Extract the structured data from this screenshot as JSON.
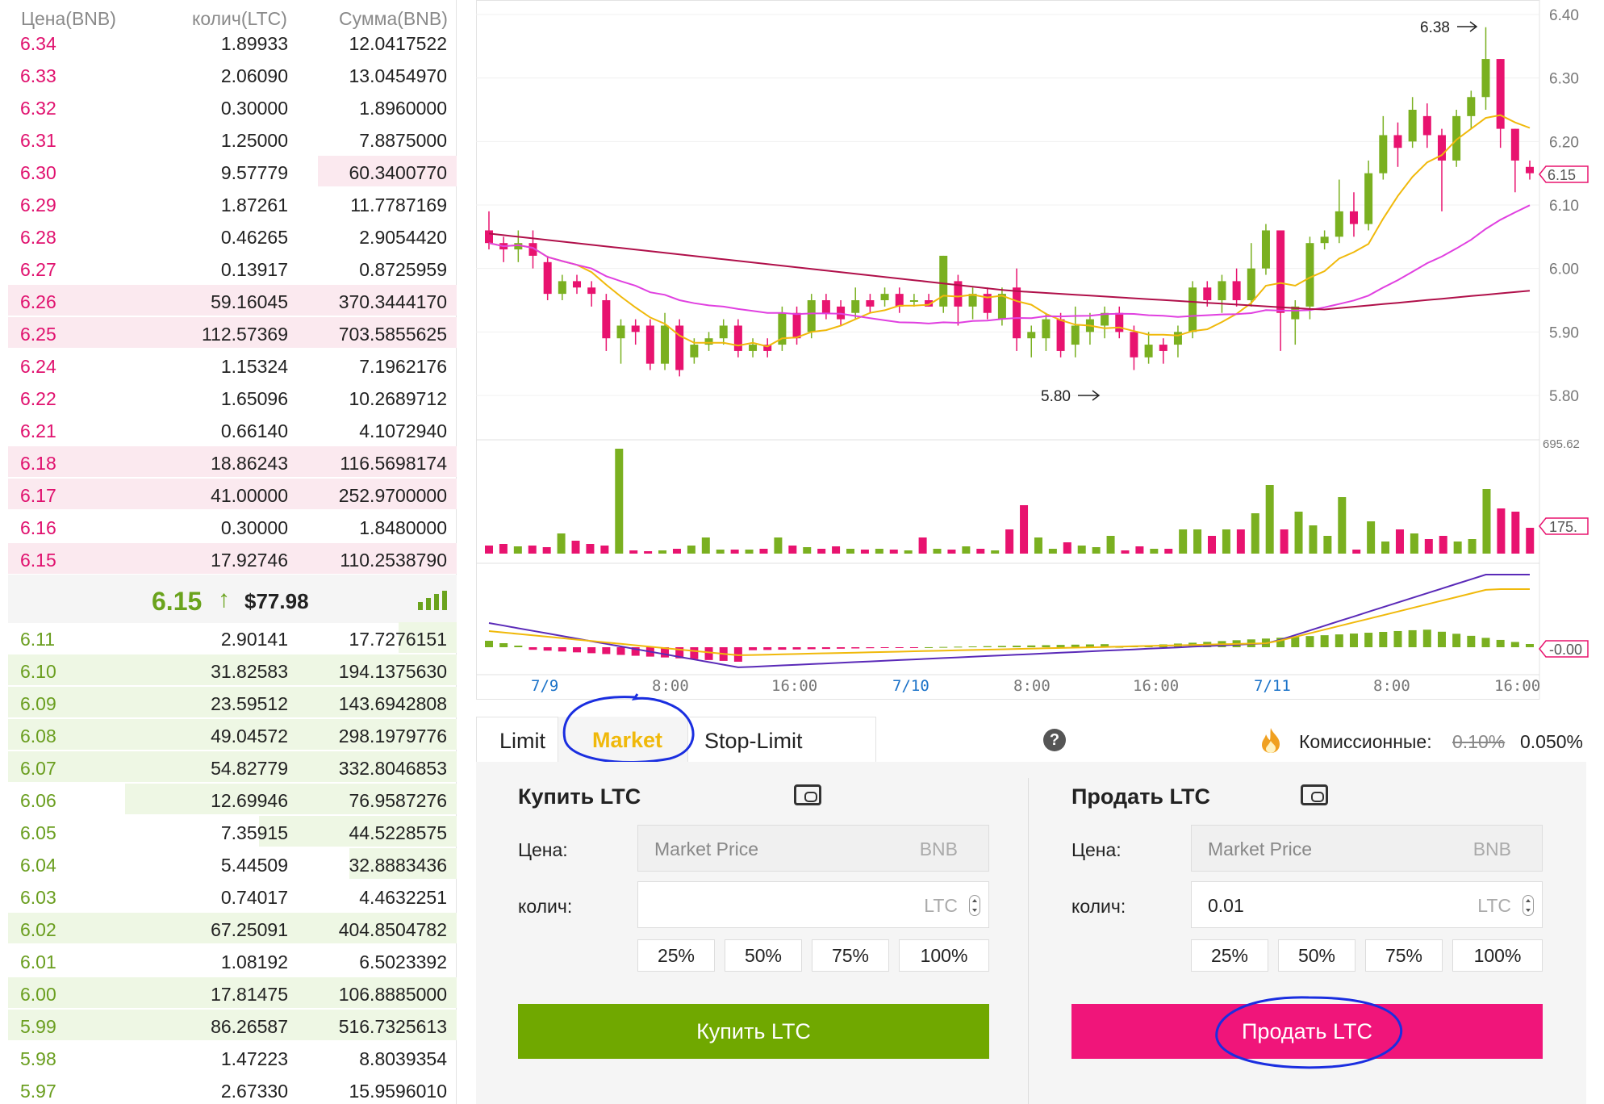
{
  "orderbook": {
    "headers": {
      "price": "Цена(BNB)",
      "qty": "колич(LTC)",
      "sum": "Сумма(BNB)"
    },
    "asks": [
      {
        "price": "6.34",
        "qty": "1.89933",
        "sum": "12.0417522",
        "depth": 0.02
      },
      {
        "price": "6.33",
        "qty": "2.06090",
        "sum": "13.0454970",
        "depth": 0.02
      },
      {
        "price": "6.32",
        "qty": "0.30000",
        "sum": "1.8960000",
        "depth": 0.02
      },
      {
        "price": "6.31",
        "qty": "1.25000",
        "sum": "7.8875000",
        "depth": 0.02
      },
      {
        "price": "6.30",
        "qty": "9.57779",
        "sum": "60.3400770",
        "depth": 0.31
      },
      {
        "price": "6.29",
        "qty": "1.87261",
        "sum": "11.7787169",
        "depth": 0.02
      },
      {
        "price": "6.28",
        "qty": "0.46265",
        "sum": "2.9054420",
        "depth": 0.02
      },
      {
        "price": "6.27",
        "qty": "0.13917",
        "sum": "0.8725959",
        "depth": 0.02
      },
      {
        "price": "6.26",
        "qty": "59.16045",
        "sum": "370.3444170",
        "depth": 1.0
      },
      {
        "price": "6.25",
        "qty": "112.57369",
        "sum": "703.5855625",
        "depth": 1.0
      },
      {
        "price": "6.24",
        "qty": "1.15324",
        "sum": "7.1962176",
        "depth": 0.02
      },
      {
        "price": "6.22",
        "qty": "1.65096",
        "sum": "10.2689712",
        "depth": 0.02
      },
      {
        "price": "6.21",
        "qty": "0.66140",
        "sum": "4.1072940",
        "depth": 0.02
      },
      {
        "price": "6.18",
        "qty": "18.86243",
        "sum": "116.5698174",
        "depth": 1.0
      },
      {
        "price": "6.17",
        "qty": "41.00000",
        "sum": "252.9700000",
        "depth": 1.0
      },
      {
        "price": "6.16",
        "qty": "0.30000",
        "sum": "1.8480000",
        "depth": 0.02
      },
      {
        "price": "6.15",
        "qty": "17.92746",
        "sum": "110.2538790",
        "depth": 1.0
      }
    ],
    "last_price": "6.15",
    "last_arrow": "↑",
    "last_usd": "$77.98",
    "bids": [
      {
        "price": "6.11",
        "qty": "2.90141",
        "sum": "17.7276151",
        "depth": 0.13
      },
      {
        "price": "6.10",
        "qty": "31.82583",
        "sum": "194.1375630",
        "depth": 1.0
      },
      {
        "price": "6.09",
        "qty": "23.59512",
        "sum": "143.6942808",
        "depth": 1.0
      },
      {
        "price": "6.08",
        "qty": "49.04572",
        "sum": "298.1979776",
        "depth": 1.0
      },
      {
        "price": "6.07",
        "qty": "54.82779",
        "sum": "332.8046853",
        "depth": 1.0
      },
      {
        "price": "6.06",
        "qty": "12.69946",
        "sum": "76.9587276",
        "depth": 0.74
      },
      {
        "price": "6.05",
        "qty": "7.35915",
        "sum": "44.5228575",
        "depth": 0.44
      },
      {
        "price": "6.04",
        "qty": "5.44509",
        "sum": "32.8883436",
        "depth": 0.24
      },
      {
        "price": "6.03",
        "qty": "0.74017",
        "sum": "4.4632251",
        "depth": 0.02
      },
      {
        "price": "6.02",
        "qty": "67.25091",
        "sum": "404.8504782",
        "depth": 1.0
      },
      {
        "price": "6.01",
        "qty": "1.08192",
        "sum": "6.5023392",
        "depth": 0.02
      },
      {
        "price": "6.00",
        "qty": "17.81475",
        "sum": "106.8885000",
        "depth": 1.0
      },
      {
        "price": "5.99",
        "qty": "86.26587",
        "sum": "516.7325613",
        "depth": 1.0
      },
      {
        "price": "5.98",
        "qty": "1.47223",
        "sum": "8.8039354",
        "depth": 0.02
      },
      {
        "price": "5.97",
        "qty": "2.67330",
        "sum": "15.9596010",
        "depth": 0.02
      }
    ]
  },
  "chart": {
    "price_ticks": [
      "6.40",
      "6.30",
      "6.20",
      "6.10",
      "6.00",
      "5.90",
      "5.80"
    ],
    "current_price_label": "6.15",
    "high_label": "6.38",
    "low_label": "5.80",
    "volume_tick": "695.62",
    "volume_current_label": "175.",
    "macd_current_label": "-0.00",
    "time_labels": [
      {
        "text": "7/9",
        "kind": "date"
      },
      {
        "text": "8:00",
        "kind": "time"
      },
      {
        "text": "16:00",
        "kind": "time"
      },
      {
        "text": "7/10",
        "kind": "date"
      },
      {
        "text": "8:00",
        "kind": "time"
      },
      {
        "text": "16:00",
        "kind": "time"
      },
      {
        "text": "7/11",
        "kind": "date"
      },
      {
        "text": "8:00",
        "kind": "time"
      },
      {
        "text": "16:00",
        "kind": "time"
      }
    ],
    "colors": {
      "up": "#7ab020",
      "down": "#e8136f",
      "ma_short": "#f0b90b",
      "ma_mid": "#e040e0",
      "ma_long": "#b0104a",
      "macd": "#5a2ab8",
      "date_label": "#1a72c8"
    }
  },
  "trade": {
    "tabs": [
      "Limit",
      "Market",
      "Stop-Limit"
    ],
    "help_icon": "?",
    "fee_label": "Комиссионные:",
    "fee_old": "0.10%",
    "fee_new": "0.050%",
    "buy": {
      "title": "Купить LTC",
      "price_label": "Цена:",
      "price_placeholder": "Market Price",
      "price_unit": "BNB",
      "qty_label": "колич:",
      "qty_value": "",
      "qty_unit": "LTC",
      "percents": [
        "25%",
        "50%",
        "75%",
        "100%"
      ],
      "button": "Купить LTC"
    },
    "sell": {
      "title": "Продать LTC",
      "price_label": "Цена:",
      "price_placeholder": "Market Price",
      "price_unit": "BNB",
      "qty_label": "колич:",
      "qty_value": "0.01",
      "qty_unit": "LTC",
      "percents": [
        "25%",
        "50%",
        "75%",
        "100%"
      ],
      "button": "Продать LTC"
    }
  }
}
